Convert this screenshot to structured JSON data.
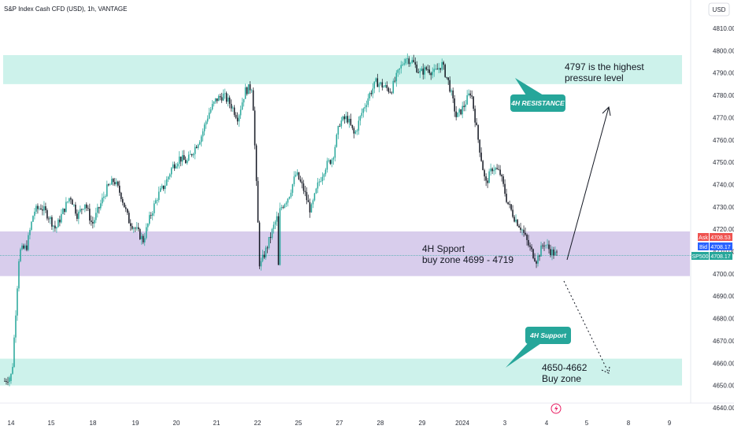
{
  "header": {
    "title": "S&P Index Cash CFD (USD), 1h, VANTAGE",
    "currency": "USD"
  },
  "price_tags": {
    "ask_label": "Ask",
    "ask_value": "4708.53",
    "bid_label": "Bid",
    "bid_value": "4708.17",
    "symbol_label": "SP500",
    "last_value": "4708.17"
  },
  "annotations": {
    "resistance_note": [
      "4797 is the highest",
      "pressure level"
    ],
    "support_note": [
      "4H Spport",
      "buy zone 4699 - 4719"
    ],
    "buyzone_note": [
      "4650-4662",
      "Buy zone"
    ],
    "resistance_callout": "4H RESISTANCE",
    "support_callout": "4H Support"
  },
  "colors": {
    "up": "#26a69a",
    "down": "#131722",
    "resistance_zone": "#b2ebe0",
    "support_zone": "#d1c4e9",
    "callout": "#26a69a"
  },
  "chart_data": {
    "type": "candlestick",
    "ylim": [
      4640,
      4815
    ],
    "yticks": [
      4640,
      4650,
      4660,
      4670,
      4680,
      4690,
      4700,
      4710,
      4720,
      4730,
      4740,
      4750,
      4760,
      4770,
      4780,
      4790,
      4800,
      4810
    ],
    "xtick_labels": [
      "14",
      "15",
      "18",
      "19",
      "20",
      "21",
      "22",
      "25",
      "27",
      "28",
      "29",
      "2024",
      "3",
      "4",
      "5",
      "8",
      "9"
    ],
    "zones": [
      {
        "name": "4H resistance",
        "from": 4785,
        "to": 4798
      },
      {
        "name": "4H support buy zone",
        "from": 4699,
        "to": 4719
      },
      {
        "name": "Buy zone",
        "from": 4650,
        "to": 4662
      }
    ],
    "last_price": 4708.17,
    "path": [
      [
        0,
        4652
      ],
      [
        1,
        4655
      ],
      [
        2,
        4710
      ],
      [
        3,
        4712
      ],
      [
        4,
        4728
      ],
      [
        5,
        4730
      ],
      [
        6,
        4726
      ],
      [
        7,
        4720
      ],
      [
        8,
        4728
      ],
      [
        9,
        4735
      ],
      [
        10,
        4726
      ],
      [
        11,
        4732
      ],
      [
        12,
        4722
      ],
      [
        13,
        4730
      ],
      [
        14,
        4738
      ],
      [
        15,
        4742
      ],
      [
        16,
        4735
      ],
      [
        17,
        4724
      ],
      [
        18,
        4720
      ],
      [
        19,
        4715
      ],
      [
        20,
        4726
      ],
      [
        21,
        4735
      ],
      [
        22,
        4740
      ],
      [
        23,
        4748
      ],
      [
        24,
        4752
      ],
      [
        25,
        4750
      ],
      [
        26,
        4756
      ],
      [
        27,
        4762
      ],
      [
        28,
        4772
      ],
      [
        29,
        4778
      ],
      [
        30,
        4780
      ],
      [
        31,
        4776
      ],
      [
        32,
        4770
      ],
      [
        33,
        4782
      ],
      [
        34,
        4784
      ],
      [
        35,
        4703
      ],
      [
        36,
        4712
      ],
      [
        37,
        4722
      ],
      [
        38,
        4730
      ],
      [
        39,
        4735
      ],
      [
        40,
        4745
      ],
      [
        41,
        4738
      ],
      [
        42,
        4728
      ],
      [
        43,
        4740
      ],
      [
        44,
        4748
      ],
      [
        45,
        4752
      ],
      [
        46,
        4768
      ],
      [
        47,
        4770
      ],
      [
        48,
        4762
      ],
      [
        49,
        4772
      ],
      [
        50,
        4780
      ],
      [
        51,
        4786
      ],
      [
        52,
        4784
      ],
      [
        53,
        4782
      ],
      [
        54,
        4790
      ],
      [
        55,
        4797
      ],
      [
        56,
        4795
      ],
      [
        57,
        4790
      ],
      [
        58,
        4792
      ],
      [
        59,
        4790
      ],
      [
        60,
        4794
      ],
      [
        61,
        4785
      ],
      [
        62,
        4770
      ],
      [
        63,
        4775
      ],
      [
        64,
        4782
      ],
      [
        65,
        4760
      ],
      [
        66,
        4740
      ],
      [
        67,
        4748
      ],
      [
        68,
        4745
      ],
      [
        69,
        4732
      ],
      [
        70,
        4725
      ],
      [
        71,
        4720
      ],
      [
        72,
        4712
      ],
      [
        73,
        4706
      ],
      [
        74,
        4714
      ],
      [
        75,
        4710
      ],
      [
        76,
        4708
      ]
    ]
  }
}
